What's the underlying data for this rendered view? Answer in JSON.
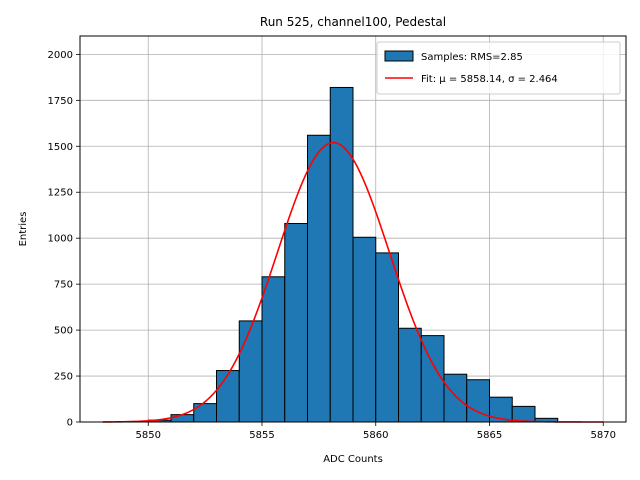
{
  "chart_data": {
    "type": "bar",
    "title": "Run 525, channel100, Pedestal",
    "xlabel": "ADC Counts",
    "ylabel": "Entries",
    "xlim": [
      5847,
      5871
    ],
    "ylim": [
      0,
      2100
    ],
    "xticks": [
      5850,
      5855,
      5860,
      5865,
      5870
    ],
    "yticks": [
      0,
      250,
      500,
      750,
      1000,
      1250,
      1500,
      1750,
      2000
    ],
    "grid": true,
    "legend_position": "top-right",
    "histogram": {
      "name": "Samples: RMS=2.85",
      "color": "#1f77b4",
      "edge_color": "#000000",
      "bins": [
        {
          "x0": 5850,
          "x1": 5851,
          "value": 10
        },
        {
          "x0": 5851,
          "x1": 5852,
          "value": 40
        },
        {
          "x0": 5852,
          "x1": 5853,
          "value": 100
        },
        {
          "x0": 5853,
          "x1": 5854,
          "value": 280
        },
        {
          "x0": 5854,
          "x1": 5855,
          "value": 550
        },
        {
          "x0": 5855,
          "x1": 5856,
          "value": 790
        },
        {
          "x0": 5856,
          "x1": 5857,
          "value": 1080
        },
        {
          "x0": 5857,
          "x1": 5858,
          "value": 1560
        },
        {
          "x0": 5858,
          "x1": 5859,
          "value": 1820
        },
        {
          "x0": 5859,
          "x1": 5860,
          "value": 1005
        },
        {
          "x0": 5860,
          "x1": 5861,
          "value": 920
        },
        {
          "x0": 5861,
          "x1": 5862,
          "value": 510
        },
        {
          "x0": 5862,
          "x1": 5863,
          "value": 470
        },
        {
          "x0": 5863,
          "x1": 5864,
          "value": 260
        },
        {
          "x0": 5864,
          "x1": 5865,
          "value": 230
        },
        {
          "x0": 5865,
          "x1": 5866,
          "value": 135
        },
        {
          "x0": 5866,
          "x1": 5867,
          "value": 85
        },
        {
          "x0": 5867,
          "x1": 5868,
          "value": 20
        }
      ]
    },
    "fit": {
      "name": "Fit: μ = 5858.14, σ = 2.464",
      "color": "#ff0000",
      "mu": 5858.14,
      "sigma": 2.464,
      "peak": 1520,
      "x_range": [
        5848,
        5870
      ]
    }
  }
}
